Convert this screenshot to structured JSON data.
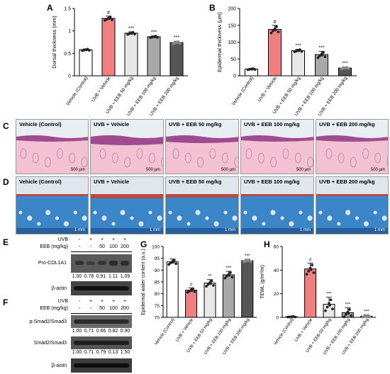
{
  "panels": {
    "A": "A",
    "B": "B",
    "C": "C",
    "D": "D",
    "E": "E",
    "F": "F",
    "G": "G",
    "H": "H"
  },
  "groups": [
    "Vehicle (Control)",
    "UVB + Vehicle",
    "UVB + EEB 50 mg/kg",
    "UVB + EEB 100 mg/kg",
    "UVB + EEB 200 mg/kg"
  ],
  "bar_colors": [
    "#ffffff",
    "#f08080",
    "#e8e8e8",
    "#a8a8a8",
    "#555555"
  ],
  "chart_data": [
    {
      "type": "bar",
      "id": "A",
      "categories": [
        "Vehicle (Control)",
        "UVB + Vehicle",
        "UVB + EEB 50 mg/kg",
        "UVB + EEB 100 mg/kg",
        "UVB + EEB 200 mg/kg"
      ],
      "values": [
        0.58,
        1.28,
        0.95,
        0.87,
        0.74
      ],
      "errors": [
        0.02,
        0.05,
        0.03,
        0.02,
        0.03
      ],
      "sig": [
        "",
        "#",
        "***",
        "***",
        "***"
      ],
      "ylabel": "Dorsal thickness (mm)",
      "ylim": [
        0,
        1.5
      ],
      "yticks": [
        0,
        0.5,
        1.0,
        1.5
      ],
      "ytick_labels": [
        "0",
        "0.5",
        "1",
        "1.5"
      ]
    },
    {
      "type": "bar",
      "id": "B",
      "categories": [
        "Vehicle (Control)",
        "UVB + Vehicle",
        "UVB + EEB 50 mg/kg",
        "UVB + EEB 100 mg/kg",
        "UVB + EEB 200 mg/kg"
      ],
      "values": [
        20,
        138,
        75,
        63,
        23
      ],
      "errors": [
        2,
        12,
        4,
        10,
        3
      ],
      "sig": [
        "",
        "#",
        "***",
        "***",
        "***"
      ],
      "ylabel": "Epidermal thickness (μm)",
      "ylim": [
        0,
        200
      ],
      "yticks": [
        0,
        50,
        100,
        150,
        200
      ],
      "ytick_labels": [
        "0",
        "50",
        "100",
        "150",
        "200"
      ]
    },
    {
      "type": "bar",
      "id": "G",
      "categories": [
        "Vehicle (Control)",
        "UVB + Vehicle",
        "UVB + EEB 50 mg/kg",
        "UVB + EEB 100 mg/kg",
        "UVB + EEB 200 mg/kg"
      ],
      "values": [
        93.5,
        81.5,
        84.5,
        88,
        94
      ],
      "errors": [
        1.2,
        1.0,
        1.5,
        1.5,
        0.6
      ],
      "sig": [
        "",
        "#",
        "**",
        "***",
        "***"
      ],
      "ylabel": "Epidermal water content (a.u.)",
      "ylim": [
        70,
        100
      ],
      "yticks": [
        70,
        75,
        80,
        85,
        90,
        95,
        100
      ],
      "ytick_labels": [
        "70",
        "75",
        "80",
        "85",
        "90",
        "95",
        "100"
      ]
    },
    {
      "type": "bar",
      "id": "H",
      "categories": [
        "Vehicle (Control)",
        "UVB + Vehicle",
        "UVB + EEB 50 mg/kg",
        "UVB + EEB 100 mg/kg",
        "UVB + EEB 200 mg/kg"
      ],
      "values": [
        0.5,
        41,
        11,
        4,
        1
      ],
      "errors": [
        0.3,
        5,
        6,
        4,
        1
      ],
      "sig": [
        "",
        "#",
        "***",
        "***",
        "***"
      ],
      "ylabel": "TEWL (g/m²/m)",
      "ylim": [
        0,
        60
      ],
      "yticks": [
        0,
        20,
        40,
        60
      ],
      "ytick_labels": [
        "0",
        "20",
        "40",
        "60"
      ]
    }
  ],
  "micrographs": {
    "C": {
      "labels": [
        "Vehicle (Control)",
        "UVB + Vehicle",
        "UVB + EEB 50 mg/kg",
        "UVB + EEB 100 mg/kg",
        "UVB + EEB 200 mg/kg"
      ],
      "scale": "500 μm",
      "stain_colors": [
        "#f2c2d2",
        "#a04a90"
      ]
    },
    "D": {
      "labels": [
        "Vehicle (Control)",
        "UVB + Vehicle",
        "UVB + EEB 50 mg/kg",
        "UVB + EEB 100 mg/kg",
        "UVB + EEB 200 mg/kg"
      ],
      "scale": "1 mm",
      "stain_colors": [
        "#3a86c8",
        "#b84a40"
      ]
    }
  },
  "blot_E": {
    "row_labels": [
      "UVB",
      "EEB (mg/kg)"
    ],
    "uvb": [
      "-",
      "+",
      "+",
      "+",
      "+"
    ],
    "eeb": [
      "-",
      "-",
      "50",
      "100",
      "200"
    ],
    "bands": [
      {
        "label": "Pro-COL1A1",
        "values": [
          "1.00",
          "0.78",
          "0.91",
          "1.11",
          "1.09"
        ]
      },
      {
        "label": "β-actin",
        "values": []
      }
    ]
  },
  "blot_F": {
    "row_labels": [
      "UVB",
      "EEB (mg/kg)"
    ],
    "uvb": [
      "-",
      "+",
      "+",
      "+",
      "+"
    ],
    "eeb": [
      "-",
      "-",
      "50",
      "100",
      "200"
    ],
    "bands": [
      {
        "label": "p-Smad2/Smad3",
        "values": [
          "1.00",
          "0.71",
          "0.66",
          "0.82",
          "0.90"
        ]
      },
      {
        "label": "Smad2/Smad3",
        "values": [
          "1.00",
          "0.71",
          "0.79",
          "0.13",
          "1.50"
        ]
      },
      {
        "label": "β-actin",
        "values": []
      }
    ]
  }
}
